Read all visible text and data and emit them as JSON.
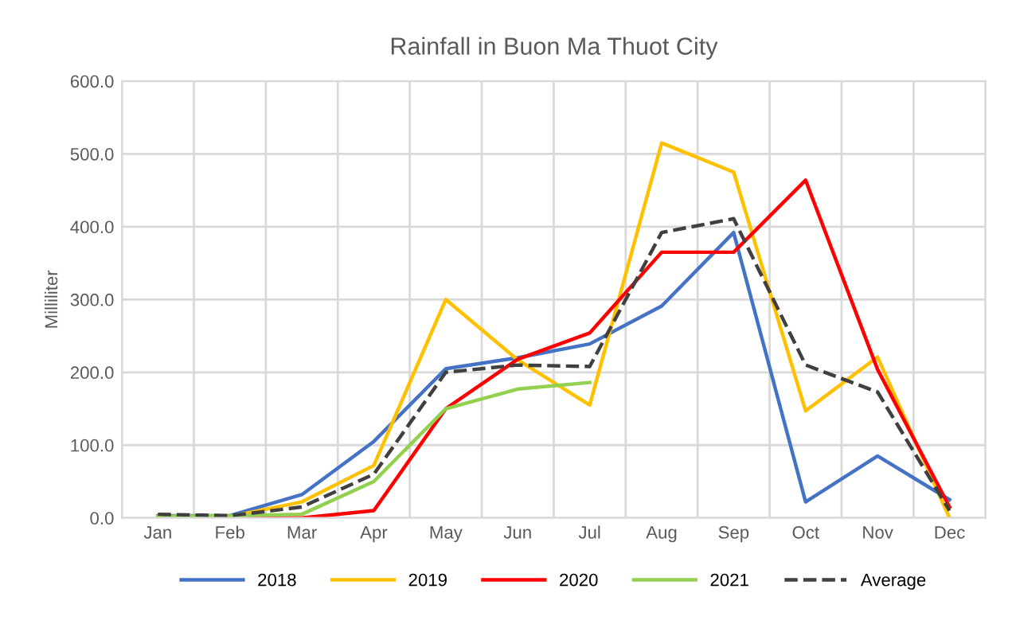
{
  "chart_data": {
    "type": "line",
    "title": "Rainfall in Buon Ma Thuot City",
    "ylabel": "Milliliter",
    "categories": [
      "Jan",
      "Feb",
      "Mar",
      "Apr",
      "May",
      "Jun",
      "Jul",
      "Aug",
      "Sep",
      "Oct",
      "Nov",
      "Dec"
    ],
    "series": [
      {
        "name": "2018",
        "color": "#4472c4",
        "values": [
          3,
          3,
          32,
          105,
          205,
          220,
          239,
          291,
          392,
          22,
          85,
          25
        ]
      },
      {
        "name": "2019",
        "color": "#ffc000",
        "values": [
          2,
          2,
          22,
          72,
          300,
          217,
          155,
          515,
          475,
          147,
          221,
          0
        ]
      },
      {
        "name": "2020",
        "color": "#ff0000",
        "values": [
          0,
          0,
          0,
          10,
          150,
          218,
          254,
          365,
          365,
          464,
          204,
          15
        ]
      },
      {
        "name": "2021",
        "color": "#92d050",
        "values": [
          2,
          3,
          5,
          50,
          150,
          177,
          186,
          null,
          null,
          null,
          null,
          null
        ]
      },
      {
        "name": "Average",
        "color": "#404040",
        "line_style": "dashed",
        "values": [
          5,
          3,
          15,
          60,
          200,
          210,
          208,
          392,
          411,
          210,
          173,
          10
        ]
      }
    ],
    "ylim": [
      0,
      600
    ],
    "yticks": [
      {
        "value": 0,
        "label": "0.0"
      },
      {
        "value": 100,
        "label": "100.0"
      },
      {
        "value": 200,
        "label": "200.0"
      },
      {
        "value": 300,
        "label": "300.0"
      },
      {
        "value": 400,
        "label": "400.0"
      },
      {
        "value": 500,
        "label": "500.0"
      },
      {
        "value": 600,
        "label": "600.0"
      }
    ],
    "grid": true,
    "legend": "bottom",
    "marker": "none",
    "line_style": "solid"
  }
}
